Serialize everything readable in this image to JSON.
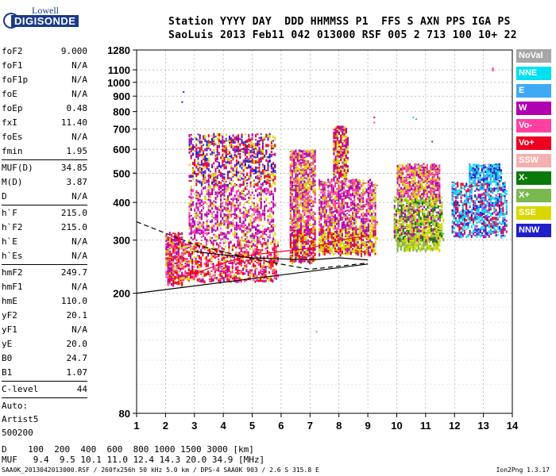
{
  "logo": {
    "line1": "Lowell",
    "line2": "DIGISONDE"
  },
  "header": {
    "line1": "Station YYYY DAY  DDD HHMMSS P1  FFS S AXN PPS IGA PS",
    "line2": "SaoLuis 2013 Feb11 042 013000 RSF 005 2 713 100 10+ 22"
  },
  "params_groups": [
    [
      {
        "k": "foF2",
        "v": "9.000"
      },
      {
        "k": "foF1",
        "v": "N/A"
      },
      {
        "k": "foF1p",
        "v": "N/A"
      },
      {
        "k": "foE",
        "v": "N/A"
      },
      {
        "k": "foEp",
        "v": "0.48"
      },
      {
        "k": "fxI",
        "v": "11.40"
      },
      {
        "k": "foEs",
        "v": "N/A"
      },
      {
        "k": "fmin",
        "v": "1.95"
      }
    ],
    [
      {
        "k": "MUF(D)",
        "v": "34.85"
      },
      {
        "k": "M(D)",
        "v": "3.87"
      },
      {
        "k": "D",
        "v": "N/A"
      }
    ],
    [
      {
        "k": "h`F",
        "v": "215.0"
      },
      {
        "k": "h`F2",
        "v": "215.0"
      },
      {
        "k": "h`E",
        "v": "N/A"
      },
      {
        "k": "h`Es",
        "v": "N/A"
      }
    ],
    [
      {
        "k": "hmF2",
        "v": "249.7"
      },
      {
        "k": "hmF1",
        "v": "N/A"
      },
      {
        "k": "hmE",
        "v": "110.0"
      },
      {
        "k": "yF2",
        "v": "20.1"
      },
      {
        "k": "yF1",
        "v": "N/A"
      },
      {
        "k": "yE",
        "v": "20.0"
      },
      {
        "k": "B0",
        "v": "24.7"
      },
      {
        "k": "B1",
        "v": "1.07"
      }
    ],
    [
      {
        "k": "C-level",
        "v": "44"
      }
    ]
  ],
  "autoscale": {
    "line1": "Auto:",
    "line2": "Artist5",
    "line3": "500200"
  },
  "legend": [
    {
      "label": "NoVal",
      "color": "#a6a6a6"
    },
    {
      "label": "NNE",
      "color": "#00e0f0"
    },
    {
      "label": "E",
      "color": "#3fa9f5"
    },
    {
      "label": "W",
      "color": "#b000b0"
    },
    {
      "label": "Vo-",
      "color": "#ff40a0"
    },
    {
      "label": "Vo+",
      "color": "#ee0022"
    },
    {
      "label": "SSW",
      "color": "#f4b0b0"
    },
    {
      "label": "X-",
      "color": "#0a7a0a"
    },
    {
      "label": "X+",
      "color": "#7ab850"
    },
    {
      "label": "SSE",
      "color": "#d8d800"
    },
    {
      "label": "NNW",
      "color": "#2020c8"
    }
  ],
  "footer": {
    "d_line": "D    100  200  400  600  800 1000 1500 3000 [km]",
    "muf_line": "MUF   9.4  9.5 10.1 11.0 12.4 14.3 20.0 34.9 [MHz]",
    "file_line": "SAA0K_2013042013000.RSF / 260fx256h 50 kHz 5.0 km / DPS-4 SAA0K 903 / 2.6 S 315.8 E",
    "version": "Ion2Png 1.3.17"
  },
  "chart_data": {
    "type": "scatter",
    "xlim": [
      1,
      14
    ],
    "ylim": [
      80,
      1280
    ],
    "yscale": "log",
    "x_ticks": [
      "1",
      "2",
      "3",
      "4",
      "5",
      "6",
      "7",
      "8",
      "9",
      "10",
      "11",
      "12",
      "13",
      "14"
    ],
    "y_ticks": [
      "80",
      "200",
      "300",
      "400",
      "500",
      "600",
      "700",
      "800",
      "900",
      "1000",
      "1100",
      "1280"
    ],
    "grid": "dashed",
    "clusters": [
      {
        "x_min": 2.0,
        "x_max": 2.6,
        "y_min": 215,
        "y_max": 320,
        "colors": [
          "#ee0022",
          "#ff40a0",
          "#d8d800",
          "#b000b0"
        ]
      },
      {
        "x_min": 2.6,
        "x_max": 5.9,
        "y_min": 220,
        "y_max": 300,
        "colors": [
          "#ee0022",
          "#ee0022",
          "#ff40a0",
          "#d8d800",
          "#b000b0"
        ]
      },
      {
        "x_min": 2.8,
        "x_max": 5.8,
        "y_min": 300,
        "y_max": 460,
        "colors": [
          "#b000b0",
          "#b000b0",
          "#d8d800",
          "#ff40a0"
        ]
      },
      {
        "x_min": 2.8,
        "x_max": 5.8,
        "y_min": 460,
        "y_max": 680,
        "colors": [
          "#b000b0",
          "#d8d800",
          "#2020c8",
          "#ee0022"
        ]
      },
      {
        "x_min": 6.3,
        "x_max": 7.2,
        "y_min": 255,
        "y_max": 330,
        "colors": [
          "#d8d800",
          "#ee0022",
          "#b000b0"
        ]
      },
      {
        "x_min": 6.3,
        "x_max": 7.2,
        "y_min": 330,
        "y_max": 600,
        "colors": [
          "#b000b0",
          "#d8d800",
          "#ff40a0"
        ]
      },
      {
        "x_min": 7.3,
        "x_max": 9.3,
        "y_min": 270,
        "y_max": 330,
        "colors": [
          "#d8d800",
          "#d8d800",
          "#ee0022",
          "#b000b0"
        ]
      },
      {
        "x_min": 7.3,
        "x_max": 9.3,
        "y_min": 330,
        "y_max": 480,
        "colors": [
          "#b000b0",
          "#b000b0",
          "#d8d800",
          "#ff40a0"
        ]
      },
      {
        "x_min": 7.8,
        "x_max": 8.3,
        "y_min": 480,
        "y_max": 720,
        "colors": [
          "#b000b0",
          "#d8d800",
          "#ee0022"
        ]
      },
      {
        "x_min": 10.0,
        "x_max": 11.5,
        "y_min": 280,
        "y_max": 310,
        "colors": [
          "#7ab850",
          "#d8d800"
        ]
      },
      {
        "x_min": 9.9,
        "x_max": 11.6,
        "y_min": 300,
        "y_max": 420,
        "colors": [
          "#d8d800",
          "#d8d800",
          "#b000b0",
          "#7ab850",
          "#0a7a0a"
        ]
      },
      {
        "x_min": 10.0,
        "x_max": 11.5,
        "y_min": 420,
        "y_max": 540,
        "colors": [
          "#b000b0",
          "#d8d800",
          "#ff40a0"
        ]
      },
      {
        "x_min": 11.9,
        "x_max": 13.8,
        "y_min": 310,
        "y_max": 470,
        "colors": [
          "#00e0f0",
          "#00e0f0",
          "#3fa9f5",
          "#2020c8",
          "#b000b0",
          "#ee0022"
        ]
      },
      {
        "x_min": 12.5,
        "x_max": 13.6,
        "y_min": 470,
        "y_max": 540,
        "colors": [
          "#00e0f0",
          "#3fa9f5",
          "#2020c8"
        ]
      }
    ],
    "outliers": [
      {
        "x": 2.6,
        "y": 935,
        "color": "#2020c8"
      },
      {
        "x": 2.55,
        "y": 865,
        "color": "#2020c8"
      },
      {
        "x": 13.3,
        "y": 1120,
        "color": "#ff40a0"
      },
      {
        "x": 13.3,
        "y": 1110,
        "color": "#ff40a0"
      },
      {
        "x": 13.3,
        "y": 1100,
        "color": "#ff40a0"
      },
      {
        "x": 10.55,
        "y": 770,
        "color": "#00e0f0"
      },
      {
        "x": 10.65,
        "y": 760,
        "color": "#3fa9f5"
      },
      {
        "x": 11.2,
        "y": 640,
        "color": "#0a7a0a"
      },
      {
        "x": 7.2,
        "y": 150,
        "color": "#a6a6a6"
      },
      {
        "x": 9.2,
        "y": 770,
        "color": "#b000b0"
      },
      {
        "x": 9.2,
        "y": 740,
        "color": "#ff40a0"
      }
    ],
    "lines": [
      {
        "style": "solid",
        "color": "#000",
        "points": [
          [
            1,
            200
          ],
          [
            9,
            250
          ]
        ]
      },
      {
        "style": "dashed",
        "color": "#000",
        "points": [
          [
            1,
            345
          ],
          [
            3,
            290
          ],
          [
            5,
            260
          ],
          [
            7,
            240
          ],
          [
            9,
            252
          ]
        ]
      },
      {
        "style": "solid",
        "color": "#000",
        "points": [
          [
            3,
            275
          ],
          [
            4,
            268
          ],
          [
            5,
            262
          ],
          [
            6,
            260
          ],
          [
            7,
            258
          ],
          [
            8,
            262
          ],
          [
            9,
            258
          ]
        ]
      },
      {
        "style": "solid",
        "color": "#ee0022",
        "points": [
          [
            2.1,
            222
          ],
          [
            3,
            232
          ],
          [
            4,
            252
          ],
          [
            5,
            268
          ],
          [
            6,
            275
          ],
          [
            7,
            282
          ],
          [
            8,
            300
          ],
          [
            9,
            310
          ]
        ]
      }
    ]
  }
}
